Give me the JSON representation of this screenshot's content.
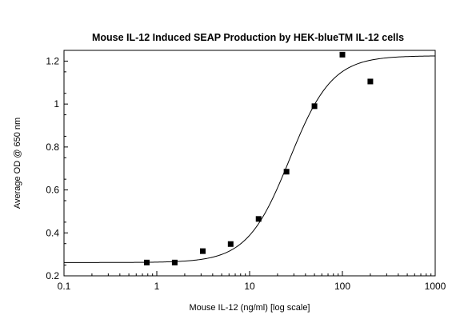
{
  "chart_data": {
    "type": "scatter",
    "title": "Mouse IL-12 Induced SEAP Production by HEK-blueTM IL-12 cells",
    "xlabel": "Mouse IL-12 (ng/ml) [log scale]",
    "ylabel": "Average OD @ 650 nm",
    "x_scale": "log",
    "xlim": [
      0.1,
      1000
    ],
    "ylim": [
      0.2,
      1.25
    ],
    "x_tick_values": [
      0.1,
      1,
      10,
      100,
      1000
    ],
    "x_tick_labels": [
      "0.1",
      "1",
      "10",
      "100",
      "1000"
    ],
    "y_tick_values": [
      0.2,
      0.4,
      0.6,
      0.8,
      1.0,
      1.2
    ],
    "y_tick_labels": [
      "0.2",
      "0.4",
      "0.6",
      "0.8",
      "1",
      "1.2"
    ],
    "grid": false,
    "series": [
      {
        "type": "scatter",
        "marker": "square",
        "x": [
          0.78,
          1.56,
          3.13,
          6.25,
          12.5,
          25,
          50,
          100,
          200
        ],
        "y": [
          0.262,
          0.262,
          0.315,
          0.348,
          0.465,
          0.685,
          0.99,
          1.23,
          1.105
        ]
      },
      {
        "type": "line",
        "fit": "four-parameter logistic",
        "bottom": 0.262,
        "top": 1.225,
        "ec50": 27,
        "hill": 1.9
      }
    ]
  }
}
